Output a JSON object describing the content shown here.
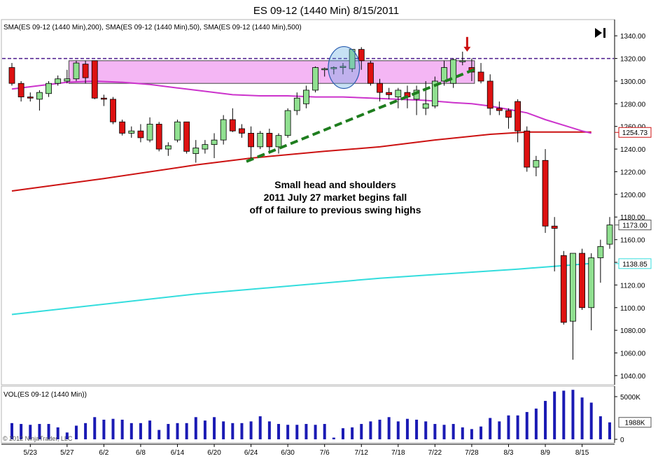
{
  "title": "ES 09-12 (1440 Min)  8/15/2011",
  "price_panel_label": "SMA(ES 09-12 (1440 Min),200), SMA(ES 09-12 (1440 Min),50), SMA(ES 09-12 (1440 Min),500)",
  "volume_panel_label": "VOL(ES 09-12 (1440 Min))",
  "copyright": "© 2012 NinjaTrader, LLC",
  "annotation": {
    "line1": "Small head and shoulders",
    "line2": "2011 July 27 market begins fall",
    "line3": "off of failure to previous swing highs"
  },
  "price_badges": {
    "sma500": "1254.73",
    "last": "1173.00",
    "sma200": "1138.85"
  },
  "volume_badge": "1988K",
  "colors": {
    "up": "#90e090",
    "down": "#dd1111",
    "sma200": "#33dddd",
    "sma50": "#cc33cc",
    "sma500": "#cc1111",
    "zone": "#f4b6f4",
    "trendline": "#1e7d1e",
    "resistance": "#4b1a8c",
    "volume": "#1a1ab4",
    "arrow": "#cc1111"
  },
  "chart_data": {
    "type": "candlestick",
    "price_axis": {
      "min": 1035,
      "max": 1350,
      "ticks": [
        1040,
        1060,
        1080,
        1100,
        1120,
        1140,
        1160,
        1180,
        1200,
        1220,
        1240,
        1260,
        1280,
        1300,
        1320,
        1340
      ]
    },
    "volume_axis": {
      "ticks": [
        {
          "value": 0,
          "label": "0"
        },
        {
          "value": 5000,
          "label": "5000K"
        }
      ]
    },
    "x_labels": [
      {
        "index": 2,
        "label": "5/23"
      },
      {
        "index": 6,
        "label": "5/27"
      },
      {
        "index": 10,
        "label": "6/2"
      },
      {
        "index": 14,
        "label": "6/8"
      },
      {
        "index": 18,
        "label": "6/14"
      },
      {
        "index": 22,
        "label": "6/20"
      },
      {
        "index": 26,
        "label": "6/24"
      },
      {
        "index": 30,
        "label": "6/30"
      },
      {
        "index": 34,
        "label": "7/6"
      },
      {
        "index": 38,
        "label": "7/12"
      },
      {
        "index": 42,
        "label": "7/18"
      },
      {
        "index": 46,
        "label": "7/22"
      },
      {
        "index": 50,
        "label": "7/28"
      },
      {
        "index": 54,
        "label": "8/3"
      },
      {
        "index": 58,
        "label": "8/9"
      },
      {
        "index": 62,
        "label": "8/15"
      }
    ],
    "candles": [
      {
        "o": 1312,
        "h": 1316,
        "l": 1296,
        "c": 1298,
        "v": 1900
      },
      {
        "o": 1298,
        "h": 1300,
        "l": 1282,
        "c": 1286,
        "v": 1800
      },
      {
        "o": 1286,
        "h": 1290,
        "l": 1282,
        "c": 1285,
        "v": 1700
      },
      {
        "o": 1284,
        "h": 1292,
        "l": 1274,
        "c": 1290,
        "v": 1800
      },
      {
        "o": 1289,
        "h": 1300,
        "l": 1286,
        "c": 1298,
        "v": 1800
      },
      {
        "o": 1298,
        "h": 1305,
        "l": 1296,
        "c": 1302,
        "v": 1400
      },
      {
        "o": 1300,
        "h": 1310,
        "l": 1298,
        "c": 1302,
        "v": 800
      },
      {
        "o": 1302,
        "h": 1318,
        "l": 1300,
        "c": 1316,
        "v": 1600
      },
      {
        "o": 1315,
        "h": 1318,
        "l": 1298,
        "c": 1303,
        "v": 1900
      },
      {
        "o": 1318,
        "h": 1318,
        "l": 1284,
        "c": 1285,
        "v": 2600
      },
      {
        "o": 1285,
        "h": 1288,
        "l": 1278,
        "c": 1284,
        "v": 2300
      },
      {
        "o": 1284,
        "h": 1286,
        "l": 1262,
        "c": 1264,
        "v": 2400
      },
      {
        "o": 1264,
        "h": 1266,
        "l": 1252,
        "c": 1254,
        "v": 2300
      },
      {
        "o": 1254,
        "h": 1260,
        "l": 1250,
        "c": 1256,
        "v": 1900
      },
      {
        "o": 1256,
        "h": 1262,
        "l": 1246,
        "c": 1250,
        "v": 1900
      },
      {
        "o": 1248,
        "h": 1268,
        "l": 1246,
        "c": 1262,
        "v": 2200
      },
      {
        "o": 1262,
        "h": 1264,
        "l": 1238,
        "c": 1240,
        "v": 1100
      },
      {
        "o": 1240,
        "h": 1246,
        "l": 1234,
        "c": 1243,
        "v": 1800
      },
      {
        "o": 1248,
        "h": 1266,
        "l": 1246,
        "c": 1264,
        "v": 1900
      },
      {
        "o": 1264,
        "h": 1264,
        "l": 1236,
        "c": 1238,
        "v": 1900
      },
      {
        "o": 1236,
        "h": 1248,
        "l": 1228,
        "c": 1241,
        "v": 2600
      },
      {
        "o": 1240,
        "h": 1248,
        "l": 1236,
        "c": 1244,
        "v": 2200
      },
      {
        "o": 1244,
        "h": 1254,
        "l": 1232,
        "c": 1248,
        "v": 2600
      },
      {
        "o": 1248,
        "h": 1270,
        "l": 1244,
        "c": 1266,
        "v": 2100
      },
      {
        "o": 1266,
        "h": 1276,
        "l": 1255,
        "c": 1256,
        "v": 1900
      },
      {
        "o": 1258,
        "h": 1262,
        "l": 1250,
        "c": 1254,
        "v": 1900
      },
      {
        "o": 1254,
        "h": 1260,
        "l": 1232,
        "c": 1242,
        "v": 2100
      },
      {
        "o": 1242,
        "h": 1256,
        "l": 1240,
        "c": 1254,
        "v": 2700
      },
      {
        "o": 1254,
        "h": 1258,
        "l": 1238,
        "c": 1242,
        "v": 2100
      },
      {
        "o": 1242,
        "h": 1254,
        "l": 1236,
        "c": 1252,
        "v": 1800
      },
      {
        "o": 1252,
        "h": 1276,
        "l": 1250,
        "c": 1274,
        "v": 1700
      },
      {
        "o": 1274,
        "h": 1290,
        "l": 1270,
        "c": 1285,
        "v": 1700
      },
      {
        "o": 1280,
        "h": 1296,
        "l": 1276,
        "c": 1292,
        "v": 1800
      },
      {
        "o": 1292,
        "h": 1313,
        "l": 1290,
        "c": 1312,
        "v": 1700
      },
      {
        "o": 1310,
        "h": 1312,
        "l": 1304,
        "c": 1311,
        "v": 1800
      },
      {
        "o": 1311,
        "h": 1313,
        "l": 1306,
        "c": 1312,
        "v": 200
      },
      {
        "o": 1312,
        "h": 1316,
        "l": 1306,
        "c": 1313,
        "v": 1300
      },
      {
        "o": 1311,
        "h": 1326,
        "l": 1308,
        "c": 1328,
        "v": 1400
      },
      {
        "o": 1328,
        "h": 1330,
        "l": 1310,
        "c": 1318,
        "v": 1800
      },
      {
        "o": 1316,
        "h": 1318,
        "l": 1296,
        "c": 1298,
        "v": 2100
      },
      {
        "o": 1298,
        "h": 1302,
        "l": 1282,
        "c": 1290,
        "v": 2300
      },
      {
        "o": 1290,
        "h": 1294,
        "l": 1284,
        "c": 1288,
        "v": 2600
      },
      {
        "o": 1286,
        "h": 1294,
        "l": 1276,
        "c": 1292,
        "v": 2100
      },
      {
        "o": 1290,
        "h": 1296,
        "l": 1276,
        "c": 1286,
        "v": 2400
      },
      {
        "o": 1284,
        "h": 1296,
        "l": 1270,
        "c": 1292,
        "v": 2300
      },
      {
        "o": 1276,
        "h": 1300,
        "l": 1270,
        "c": 1280,
        "v": 2100
      },
      {
        "o": 1278,
        "h": 1304,
        "l": 1276,
        "c": 1300,
        "v": 1800
      },
      {
        "o": 1300,
        "h": 1318,
        "l": 1296,
        "c": 1312,
        "v": 1700
      },
      {
        "o": 1298,
        "h": 1320,
        "l": 1294,
        "c": 1319,
        "v": 1800
      },
      {
        "o": 1318,
        "h": 1326,
        "l": 1314,
        "c": 1318,
        "v": 1400
      },
      {
        "o": 1312,
        "h": 1320,
        "l": 1300,
        "c": 1308,
        "v": 1200
      },
      {
        "o": 1308,
        "h": 1316,
        "l": 1298,
        "c": 1300,
        "v": 1500
      },
      {
        "o": 1300,
        "h": 1306,
        "l": 1270,
        "c": 1276,
        "v": 2500
      },
      {
        "o": 1276,
        "h": 1282,
        "l": 1270,
        "c": 1274,
        "v": 2100
      },
      {
        "o": 1274,
        "h": 1276,
        "l": 1258,
        "c": 1268,
        "v": 2800
      },
      {
        "o": 1282,
        "h": 1284,
        "l": 1246,
        "c": 1256,
        "v": 2800
      },
      {
        "o": 1256,
        "h": 1260,
        "l": 1220,
        "c": 1224,
        "v": 3200
      },
      {
        "o": 1224,
        "h": 1234,
        "l": 1216,
        "c": 1230,
        "v": 3600
      },
      {
        "o": 1230,
        "h": 1240,
        "l": 1166,
        "c": 1172,
        "v": 4500
      },
      {
        "o": 1172,
        "h": 1180,
        "l": 1132,
        "c": 1170,
        "v": 5600
      },
      {
        "o": 1146,
        "h": 1150,
        "l": 1085,
        "c": 1087,
        "v": 5700
      },
      {
        "o": 1088,
        "h": 1148,
        "l": 1054,
        "c": 1148,
        "v": 5800
      },
      {
        "o": 1148,
        "h": 1152,
        "l": 1098,
        "c": 1100,
        "v": 4900
      },
      {
        "o": 1100,
        "h": 1148,
        "l": 1080,
        "c": 1144,
        "v": 4300
      },
      {
        "o": 1144,
        "h": 1160,
        "l": 1122,
        "c": 1154,
        "v": 2700
      },
      {
        "o": 1156,
        "h": 1180,
        "l": 1152,
        "c": 1173,
        "v": 1988
      }
    ],
    "sma200": [
      [
        0,
        1094
      ],
      [
        20,
        1112
      ],
      [
        40,
        1126
      ],
      [
        55,
        1134
      ],
      [
        63,
        1139
      ]
    ],
    "sma50": [
      [
        0,
        1293
      ],
      [
        3,
        1296
      ],
      [
        6,
        1299
      ],
      [
        9,
        1300
      ],
      [
        12,
        1299
      ],
      [
        15,
        1297
      ],
      [
        18,
        1294
      ],
      [
        21,
        1291
      ],
      [
        24,
        1288
      ],
      [
        27,
        1287
      ],
      [
        30,
        1287
      ],
      [
        33,
        1286
      ],
      [
        36,
        1286
      ],
      [
        39,
        1285
      ],
      [
        42,
        1284
      ],
      [
        45,
        1283
      ],
      [
        48,
        1281
      ],
      [
        50,
        1280
      ],
      [
        52,
        1278
      ],
      [
        54,
        1275
      ],
      [
        56,
        1272
      ],
      [
        58,
        1266
      ],
      [
        60,
        1261
      ],
      [
        62,
        1256
      ],
      [
        63,
        1254
      ]
    ],
    "sma500": [
      [
        0,
        1203
      ],
      [
        10,
        1214
      ],
      [
        20,
        1226
      ],
      [
        26,
        1232
      ],
      [
        34,
        1238
      ],
      [
        40,
        1242
      ],
      [
        46,
        1248
      ],
      [
        52,
        1253
      ],
      [
        56,
        1255
      ],
      [
        63,
        1255
      ]
    ],
    "resistance_level": 1320,
    "zone": {
      "x0": 6.2,
      "x1": 50.3,
      "top": 1318,
      "bottom": 1298
    },
    "trendline": [
      [
        25.5,
        1229
      ],
      [
        50.5,
        1311
      ]
    ],
    "highlight_ellipse": {
      "center_index": 36.1,
      "center_price": 1312,
      "span_bars": 3.4,
      "span_price": 37
    },
    "arrow": {
      "index": 49.5,
      "from_price": 1339,
      "to_price": 1326
    }
  }
}
